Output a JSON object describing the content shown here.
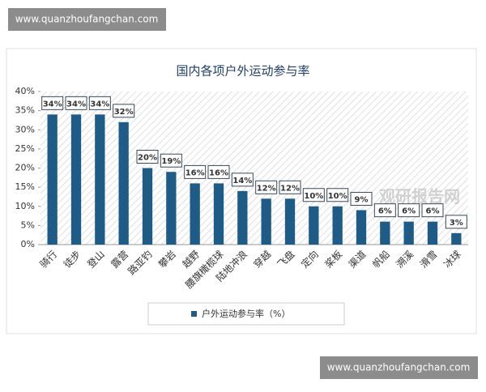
{
  "watermarks": {
    "top": "www.quanzhoufangchan.com",
    "bottom": "www.quanzhoufangchan.com",
    "center": "观研报告网"
  },
  "chart_data": {
    "type": "bar",
    "title": "国内各项户外运动参与率",
    "categories": [
      "骑行",
      "徒步",
      "登山",
      "露营",
      "路亚钓",
      "攀岩",
      "越野",
      "腰旗橄榄球",
      "陆地冲浪",
      "穿越",
      "飞盘",
      "定向",
      "桨板",
      "渠道",
      "帆船",
      "溯溪",
      "滑雪",
      "冰球"
    ],
    "series": [
      {
        "name": "户外运动参与率（%）",
        "color": "#1f5b87",
        "values": [
          34,
          34,
          34,
          32,
          20,
          19,
          16,
          16,
          14,
          12,
          12,
          10,
          10,
          9,
          6,
          6,
          6,
          3
        ],
        "value_labels": [
          "34%",
          "34%",
          "34%",
          "32%",
          "20%",
          "19%",
          "16%",
          "16%",
          "14%",
          "12%",
          "12%",
          "10%",
          "10%",
          "9%",
          "6%",
          "6%",
          "6%",
          "3%"
        ]
      }
    ],
    "ylim": [
      0,
      40
    ],
    "yticks": [
      {
        "value": 0,
        "label": "0%"
      },
      {
        "value": 5,
        "label": "5%"
      },
      {
        "value": 10,
        "label": "10%"
      },
      {
        "value": 15,
        "label": "15%"
      },
      {
        "value": 20,
        "label": "20%"
      },
      {
        "value": 25,
        "label": "25%"
      },
      {
        "value": 30,
        "label": "30%"
      },
      {
        "value": 35,
        "label": "35%"
      },
      {
        "value": 40,
        "label": "40%"
      }
    ],
    "legend": "bottom"
  }
}
